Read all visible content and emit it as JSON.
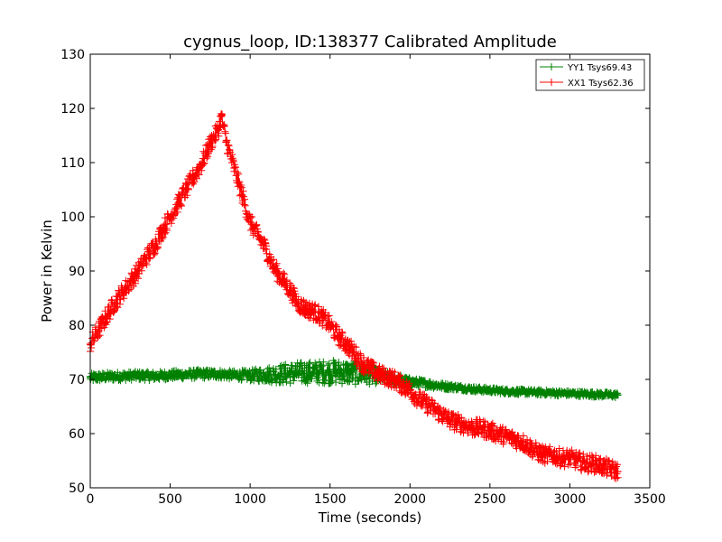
{
  "chart_data": {
    "type": "line",
    "title": "cygnus_loop, ID:138377 Calibrated Amplitude",
    "xlabel": "Time (seconds)",
    "ylabel": "Power in Kelvin",
    "xlim": [
      0,
      3500
    ],
    "ylim": [
      50,
      130
    ],
    "xticks": [
      0,
      500,
      1000,
      1500,
      2000,
      2500,
      3000,
      3500
    ],
    "yticks": [
      50,
      60,
      70,
      80,
      90,
      100,
      110,
      120,
      130
    ],
    "grid": false,
    "legend_position": "top-right",
    "marker": "plus",
    "series": [
      {
        "name": "YY1 Tsys69.43",
        "color": "#008000",
        "x": [
          0,
          100,
          200,
          300,
          400,
          500,
          600,
          700,
          800,
          900,
          1000,
          1100,
          1200,
          1300,
          1400,
          1500,
          1600,
          1700,
          1800,
          1900,
          2000,
          2100,
          2200,
          2300,
          2400,
          2500,
          2600,
          2700,
          2800,
          2900,
          3000,
          3100,
          3200,
          3300
        ],
        "y": [
          70.3,
          70.5,
          70.6,
          70.7,
          70.6,
          70.8,
          70.9,
          71.0,
          71.0,
          70.8,
          70.7,
          70.9,
          71.0,
          71.2,
          71.3,
          71.4,
          71.3,
          71.0,
          70.6,
          70.0,
          69.5,
          69.2,
          68.8,
          68.5,
          68.2,
          68.0,
          67.8,
          67.7,
          67.6,
          67.5,
          67.4,
          67.3,
          67.2,
          67.1
        ],
        "spread": [
          0.8,
          0.8,
          0.8,
          0.8,
          0.8,
          0.8,
          0.8,
          0.8,
          0.8,
          0.8,
          1.0,
          1.4,
          1.8,
          2.0,
          2.0,
          2.2,
          2.2,
          2.0,
          1.4,
          1.0,
          0.8,
          0.7,
          0.6,
          0.5,
          0.5,
          0.5,
          0.5,
          0.5,
          0.5,
          0.5,
          0.5,
          0.5,
          0.5,
          0.5
        ]
      },
      {
        "name": "XX1 Tsys62.36",
        "color": "#ff0000",
        "x": [
          0,
          50,
          100,
          150,
          200,
          250,
          300,
          350,
          400,
          450,
          500,
          550,
          600,
          650,
          700,
          750,
          800,
          820,
          850,
          900,
          950,
          1000,
          1050,
          1100,
          1150,
          1200,
          1250,
          1300,
          1350,
          1400,
          1450,
          1500,
          1550,
          1600,
          1650,
          1700,
          1750,
          1800,
          1850,
          1900,
          1950,
          2000,
          2050,
          2100,
          2150,
          2200,
          2250,
          2300,
          2350,
          2400,
          2450,
          2500,
          2550,
          2600,
          2650,
          2700,
          2750,
          2800,
          2850,
          2900,
          2950,
          3000,
          3050,
          3100,
          3150,
          3200,
          3250,
          3300
        ],
        "y": [
          76.5,
          79.0,
          81.5,
          84.0,
          86.0,
          88.0,
          90.0,
          92.5,
          94.5,
          97.5,
          100.0,
          102.5,
          105.0,
          107.5,
          110.0,
          113.5,
          116.0,
          118.5,
          114.0,
          109.0,
          104.0,
          99.0,
          96.5,
          94.0,
          90.5,
          88.5,
          86.5,
          84.0,
          83.0,
          82.5,
          81.5,
          80.0,
          78.0,
          76.5,
          75.0,
          73.0,
          72.0,
          71.0,
          70.5,
          70.0,
          69.0,
          68.0,
          66.5,
          65.5,
          64.5,
          63.5,
          62.5,
          62.0,
          61.5,
          61.0,
          61.0,
          60.5,
          60.0,
          59.5,
          59.0,
          58.5,
          57.5,
          56.5,
          56.0,
          56.0,
          55.5,
          55.5,
          55.0,
          54.5,
          54.5,
          54.0,
          53.5,
          53.0
        ],
        "spread": 1.6
      }
    ],
    "annotations": []
  }
}
